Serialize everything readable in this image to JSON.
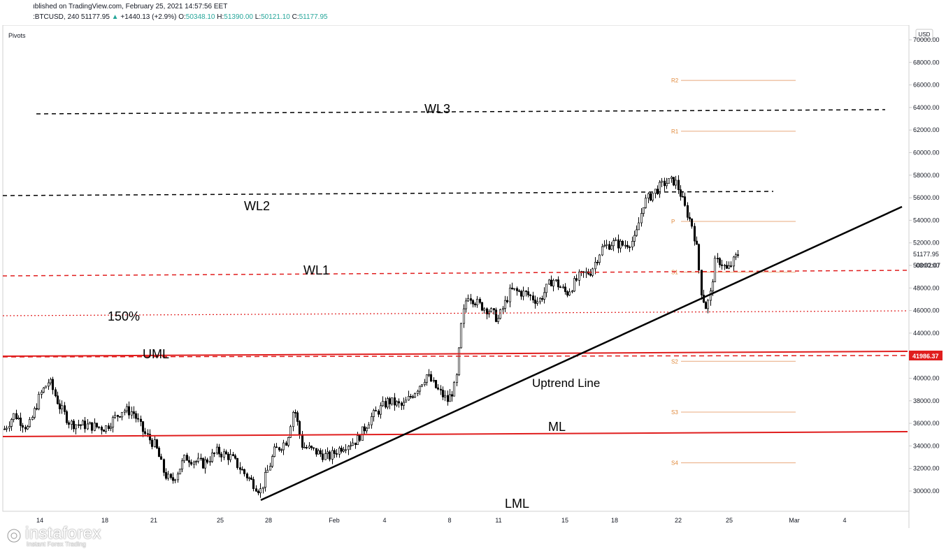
{
  "header": {
    "published": "ıblished on TradingView.com, February 25, 2021 14:57:56 EET",
    "symbol": ":BTCUSD, 240",
    "last": "51177.95",
    "change": "+1440.13 (+2.9%)",
    "o_label": "O:",
    "o_value": "50348.10",
    "h_label": "H:",
    "h_value": "51390.00",
    "l_label": "L:",
    "l_value": "50121.10",
    "c_label": "C:",
    "c_value": "51177.95"
  },
  "colors": {
    "up": "#26a69a",
    "candle": "#000000",
    "pivot": "#e8a87c",
    "pivot_text": "#e08a3c",
    "red": "#e01e1e",
    "dark": "#000000",
    "price_tag": "#e01e1e"
  },
  "chart_data": {
    "type": "candlestick",
    "indicator_label": "Pivots",
    "currency": "USD",
    "ylim": [
      28500,
      70500
    ],
    "y_ticks": [
      "30000.00",
      "32000.00",
      "34000.00",
      "36000.00",
      "38000.00",
      "40000.00",
      "42000.00",
      "44000.00",
      "46000.00",
      "48000.00",
      "50000.00",
      "52000.00",
      "54000.00",
      "56000.00",
      "58000.00",
      "60000.00",
      "62000.00",
      "64000.00",
      "66000.00",
      "68000.00",
      "70000.00"
    ],
    "x_ticks": [
      "14",
      "18",
      "21",
      "25",
      "28",
      "Feb",
      "4",
      "8",
      "11",
      "15",
      "18",
      "22",
      "25",
      "Mar",
      "4"
    ],
    "last_price_label": "51177.95",
    "countdown_label": "03:02:07",
    "level_tag": "41986.37",
    "pivots": [
      {
        "name": "R2",
        "value": 66400
      },
      {
        "name": "R1",
        "value": 61900
      },
      {
        "name": "P",
        "value": 53900
      },
      {
        "name": "S1",
        "value": 49400
      },
      {
        "name": "S2",
        "value": 41500
      },
      {
        "name": "S3",
        "value": 37000
      },
      {
        "name": "S4",
        "value": 32500
      }
    ],
    "annotations": [
      "WL3",
      "WL2",
      "WL1",
      "150%",
      "UML",
      "Uptrend Line",
      "ML",
      "LML"
    ],
    "candles_ohlc_approx": [
      {
        "date": "Jan 13",
        "close": 36000
      },
      {
        "date": "Jan 14",
        "close": 39500
      },
      {
        "date": "Jan 17",
        "close": 36000
      },
      {
        "date": "Jan 20",
        "close": 36500
      },
      {
        "date": "Jan 22",
        "close": 31000
      },
      {
        "date": "Jan 27",
        "close": 30500
      },
      {
        "date": "Jan 29",
        "close": 34000
      },
      {
        "date": "Feb 4",
        "close": 37000
      },
      {
        "date": "Feb 7",
        "close": 39500
      },
      {
        "date": "Feb 8",
        "close": 46500
      },
      {
        "date": "Feb 12",
        "close": 47800
      },
      {
        "date": "Feb 16",
        "close": 49000
      },
      {
        "date": "Feb 19",
        "close": 55500
      },
      {
        "date": "Feb 21",
        "close": 57500
      },
      {
        "date": "Feb 23",
        "close": 47000
      },
      {
        "date": "Feb 25",
        "close": 51177.95
      }
    ]
  },
  "branding": {
    "name": "instaforex",
    "tagline": "Instant Forex Trading"
  }
}
